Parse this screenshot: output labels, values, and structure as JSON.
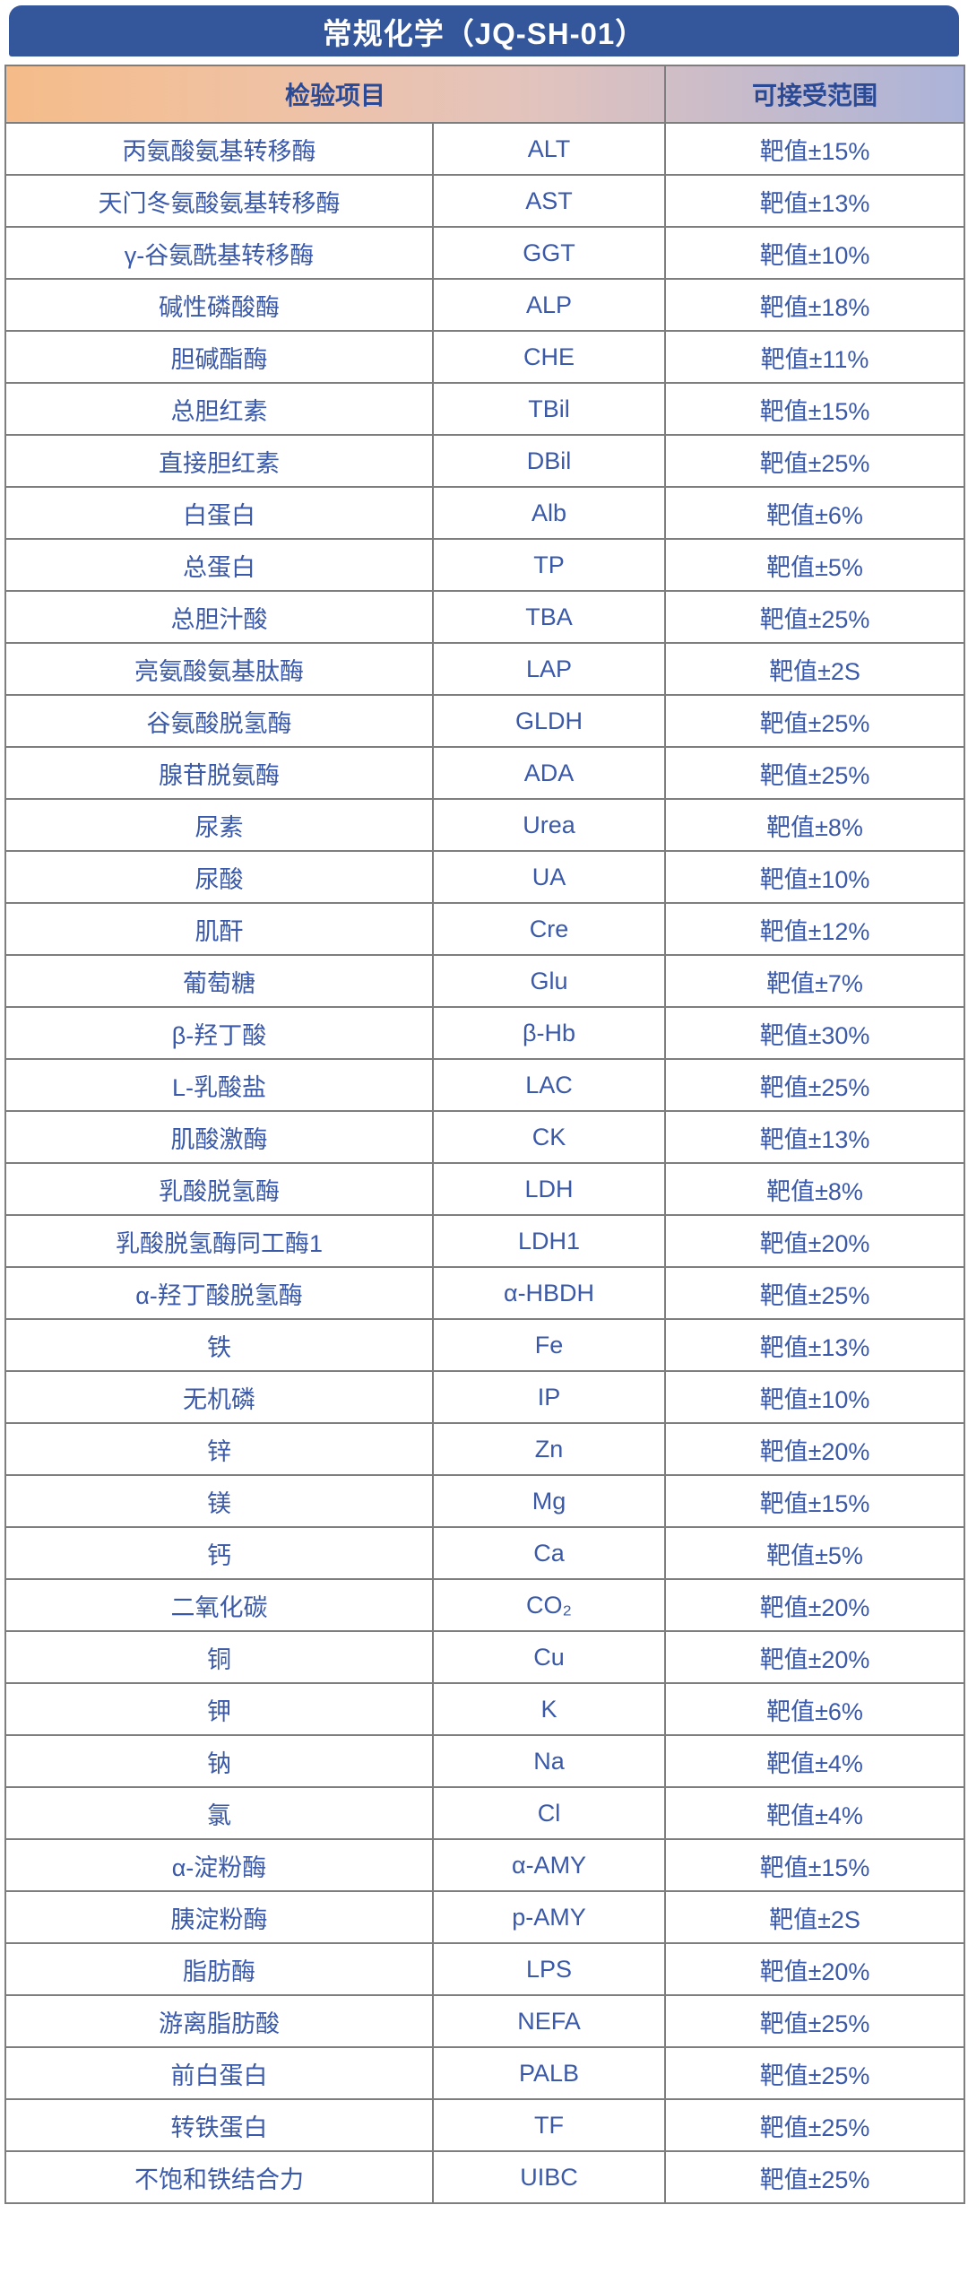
{
  "title": "常规化学（JQ-SH-01）",
  "table": {
    "headers": {
      "item": "检验项目",
      "range": "可接受范围"
    },
    "rows": [
      {
        "name": "丙氨酸氨基转移酶",
        "abbr": "ALT",
        "range": "靶值±15%"
      },
      {
        "name": "天门冬氨酸氨基转移酶",
        "abbr": "AST",
        "range": "靶值±13%"
      },
      {
        "name": "γ-谷氨酰基转移酶",
        "abbr": "GGT",
        "range": "靶值±10%"
      },
      {
        "name": "碱性磷酸酶",
        "abbr": "ALP",
        "range": "靶值±18%"
      },
      {
        "name": "胆碱酯酶",
        "abbr": "CHE",
        "range": "靶值±11%"
      },
      {
        "name": "总胆红素",
        "abbr": "TBil",
        "range": "靶值±15%"
      },
      {
        "name": "直接胆红素",
        "abbr": "DBil",
        "range": "靶值±25%"
      },
      {
        "name": "白蛋白",
        "abbr": "Alb",
        "range": "靶值±6%"
      },
      {
        "name": "总蛋白",
        "abbr": "TP",
        "range": "靶值±5%"
      },
      {
        "name": "总胆汁酸",
        "abbr": "TBA",
        "range": "靶值±25%"
      },
      {
        "name": "亮氨酸氨基肽酶",
        "abbr": "LAP",
        "range": "靶值±2S"
      },
      {
        "name": "谷氨酸脱氢酶",
        "abbr": "GLDH",
        "range": "靶值±25%"
      },
      {
        "name": "腺苷脱氨酶",
        "abbr": "ADA",
        "range": "靶值±25%"
      },
      {
        "name": "尿素",
        "abbr": "Urea",
        "range": "靶值±8%"
      },
      {
        "name": "尿酸",
        "abbr": "UA",
        "range": "靶值±10%"
      },
      {
        "name": "肌酐",
        "abbr": "Cre",
        "range": "靶值±12%"
      },
      {
        "name": "葡萄糖",
        "abbr": "Glu",
        "range": "靶值±7%"
      },
      {
        "name": "β-羟丁酸",
        "abbr": "β-Hb",
        "range": "靶值±30%"
      },
      {
        "name": "L-乳酸盐",
        "abbr": "LAC",
        "range": "靶值±25%"
      },
      {
        "name": "肌酸激酶",
        "abbr": "CK",
        "range": "靶值±13%"
      },
      {
        "name": "乳酸脱氢酶",
        "abbr": "LDH",
        "range": "靶值±8%"
      },
      {
        "name": "乳酸脱氢酶同工酶1",
        "abbr": "LDH1",
        "range": "靶值±20%"
      },
      {
        "name": "α-羟丁酸脱氢酶",
        "abbr": "α-HBDH",
        "range": "靶值±25%"
      },
      {
        "name": "铁",
        "abbr": "Fe",
        "range": "靶值±13%"
      },
      {
        "name": "无机磷",
        "abbr": "IP",
        "range": "靶值±10%"
      },
      {
        "name": "锌",
        "abbr": "Zn",
        "range": "靶值±20%"
      },
      {
        "name": "镁",
        "abbr": "Mg",
        "range": "靶值±15%"
      },
      {
        "name": "钙",
        "abbr": "Ca",
        "range": "靶值±5%"
      },
      {
        "name": "二氧化碳",
        "abbr": "CO₂",
        "range": "靶值±20%"
      },
      {
        "name": "铜",
        "abbr": "Cu",
        "range": "靶值±20%"
      },
      {
        "name": "钾",
        "abbr": "K",
        "range": "靶值±6%"
      },
      {
        "name": "钠",
        "abbr": "Na",
        "range": "靶值±4%"
      },
      {
        "name": "氯",
        "abbr": "Cl",
        "range": "靶值±4%"
      },
      {
        "name": "α-淀粉酶",
        "abbr": "α-AMY",
        "range": "靶值±15%"
      },
      {
        "name": "胰淀粉酶",
        "abbr": "p-AMY",
        "range": "靶值±2S"
      },
      {
        "name": "脂肪酶",
        "abbr": "LPS",
        "range": "靶值±20%"
      },
      {
        "name": "游离脂肪酸",
        "abbr": "NEFA",
        "range": "靶值±25%"
      },
      {
        "name": "前白蛋白",
        "abbr": "PALB",
        "range": "靶值±25%"
      },
      {
        "name": "转铁蛋白",
        "abbr": "TF",
        "range": "靶值±25%"
      },
      {
        "name": "不饱和铁结合力",
        "abbr": "UIBC",
        "range": "靶值±25%"
      }
    ]
  },
  "colors": {
    "title_bar": "#34569B",
    "title_text": "#FFFFFF",
    "header_gradient_left": "#F5BC89",
    "header_gradient_mid": "#E2C3BD",
    "header_gradient_right": "#ABB3D9",
    "header_text": "#2B4A96",
    "cell_text": "#3A59A8",
    "grid_border": "#7E7E7E",
    "background": "#FFFFFF"
  }
}
